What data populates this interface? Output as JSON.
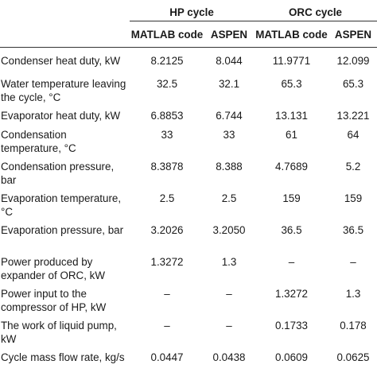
{
  "header": {
    "hp_group": "HP cycle",
    "orc_group": "ORC cycle",
    "sub": [
      "MATLAB code",
      "ASPEN",
      "MATLAB code",
      "ASPEN"
    ]
  },
  "rows": [
    {
      "label": "Condenser heat duty, kW",
      "hp_matlab": "8.2125",
      "hp_aspen": "8.044",
      "orc_matlab": "11.9771",
      "orc_aspen": "12.099"
    },
    {
      "label": "Water temperature leaving the cycle, °C",
      "hp_matlab": "32.5",
      "hp_aspen": "32.1",
      "orc_matlab": "65.3",
      "orc_aspen": "65.3"
    },
    {
      "label": "Evaporator heat duty, kW",
      "hp_matlab": "6.8853",
      "hp_aspen": "6.744",
      "orc_matlab": "13.131",
      "orc_aspen": "13.221"
    },
    {
      "label": "Condensation temperature, °C",
      "hp_matlab": "33",
      "hp_aspen": "33",
      "orc_matlab": "61",
      "orc_aspen": "64"
    },
    {
      "label": "Condensation pressure, bar",
      "hp_matlab": "8.3878",
      "hp_aspen": "8.388",
      "orc_matlab": "4.7689",
      "orc_aspen": "5.2"
    },
    {
      "label": "Evaporation temperature, °C",
      "hp_matlab": "2.5",
      "hp_aspen": "2.5",
      "orc_matlab": "159",
      "orc_aspen": "159"
    },
    {
      "label": "Evaporation pressure, bar",
      "hp_matlab": "3.2026",
      "hp_aspen": "3.2050",
      "orc_matlab": "36.5",
      "orc_aspen": "36.5"
    },
    {
      "label": "Power produced by expander of ORC, kW",
      "hp_matlab": "1.3272",
      "hp_aspen": "1.3",
      "orc_matlab": "–",
      "orc_aspen": "–"
    },
    {
      "label": "Power input to the compressor of HP, kW",
      "hp_matlab": "–",
      "hp_aspen": "–",
      "orc_matlab": "1.3272",
      "orc_aspen": "1.3"
    },
    {
      "label": "The work of liquid pump, kW",
      "hp_matlab": "–",
      "hp_aspen": "–",
      "orc_matlab": "0.1733",
      "orc_aspen": "0.178"
    },
    {
      "label": "Cycle mass flow rate, kg/s",
      "hp_matlab": "0.0447",
      "hp_aspen": "0.0438",
      "orc_matlab": "0.0609",
      "orc_aspen": "0.0625"
    }
  ]
}
